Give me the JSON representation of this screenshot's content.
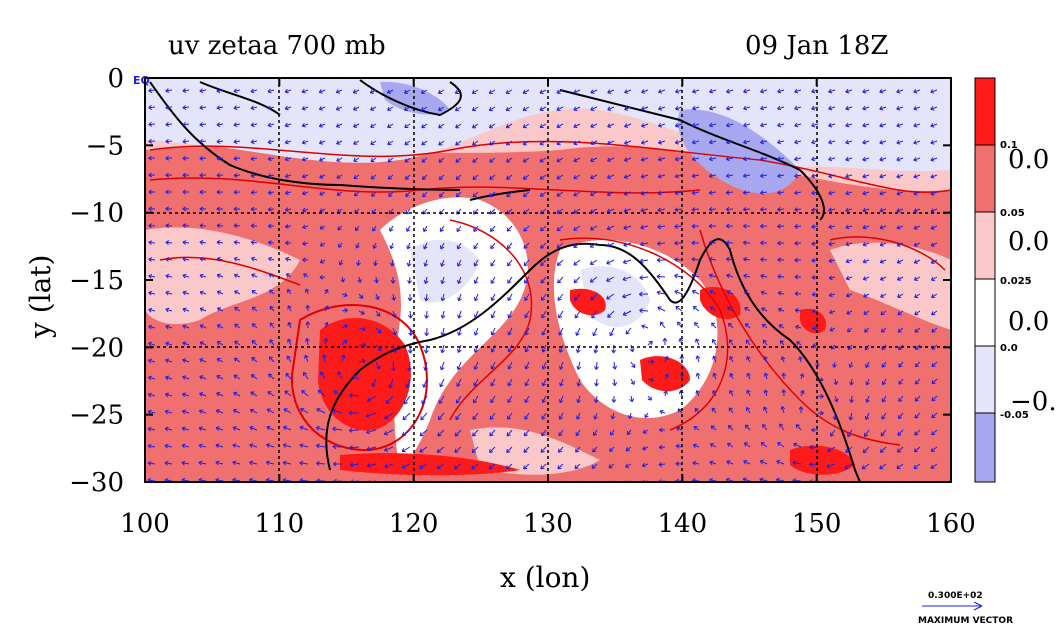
{
  "chart_data": {
    "type": "heatmap",
    "title": "uv zetaa 700 mb",
    "time_label": "09 Jan 18Z",
    "xlabel": "x (lon)",
    "ylabel": "y (lat)",
    "xlim": [
      100,
      160
    ],
    "ylim": [
      -30,
      0
    ],
    "x_ticks": [
      100,
      110,
      120,
      130,
      140,
      150,
      160
    ],
    "y_ticks": [
      0,
      -5,
      -10,
      -15,
      -20,
      -25,
      -30
    ],
    "x_tick_labels": [
      "100",
      "110",
      "120",
      "130",
      "140",
      "150",
      "160"
    ],
    "y_tick_labels": [
      "0",
      "−5",
      "−10",
      "−15",
      "−20",
      "−25",
      "−30"
    ],
    "corner_label": "EQ",
    "grid": true,
    "colorbar": {
      "levels": [
        "0.1",
        "0.05",
        "0.025",
        "0.0",
        "-0.05"
      ],
      "side_labels": [
        "0.0",
        "0.0",
        "0.0",
        "−0."
      ],
      "colors": [
        "#ff1a1a",
        "#f07070",
        "#fac8c8",
        "#ffffff",
        "#e4e4fa",
        "#a8a8f0"
      ]
    },
    "vector_legend": {
      "value": "0.300E+02",
      "label": "MAXIMUM VECTOR"
    },
    "colors": {
      "strong_positive": "#ff1a1a",
      "positive": "#f07070",
      "weak_positive": "#fac8c8",
      "neutral": "#ffffff",
      "weak_negative": "#e4e4fa",
      "negative": "#a8a8f0",
      "contour": "#e00000",
      "vectors": "#2020e0",
      "coast": "#000000"
    },
    "features": [
      {
        "name": "cyclonic vortex",
        "lon": 117,
        "lat": -22
      },
      {
        "name": "positive vorticity cluster",
        "lon": 137,
        "lat": -20
      },
      {
        "name": "positive vorticity cluster",
        "lon": 150,
        "lat": -27
      }
    ]
  }
}
